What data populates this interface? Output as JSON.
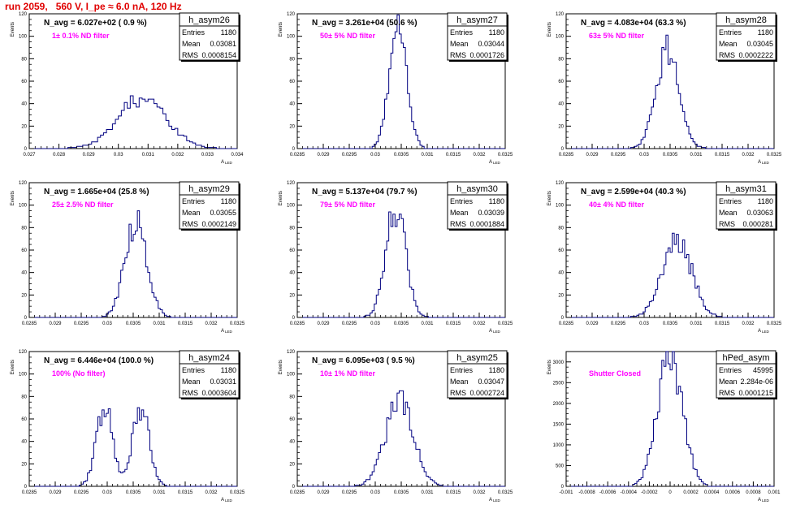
{
  "page": {
    "title": "run 2059,   560 V, I_pe ≈ 6.0 nA, 120 Hz",
    "stats_labels": {
      "entries": "Entries",
      "mean": "Mean",
      "rms": "RMS"
    },
    "ylabel": "Events",
    "xlabel": "A",
    "xlabel_sub": "LED",
    "colors": {
      "hist": "#000080",
      "title_red": "#e00000",
      "annotation": "#ff00ff",
      "axis": "#000000"
    }
  },
  "chart_data": [
    {
      "type": "bar",
      "name": "h_asym26",
      "n_avg": "N_avg = 6.027e+02 ( 0.9 %)",
      "annotation": "1± 0.1% ND filter",
      "entries": "1180",
      "mean": "0.03081",
      "rms": "0.0008154",
      "xlim": [
        0.027,
        0.034
      ],
      "ylim": [
        0,
        120
      ],
      "xticks": [
        "0.027",
        "0.028",
        "0.029",
        "0.03",
        "0.031",
        "0.032",
        "0.033",
        "0.034"
      ],
      "yticks": [
        "0",
        "20",
        "40",
        "60",
        "80",
        "100",
        "120"
      ],
      "bins": {
        "mean": 0.03081,
        "sigma": 0.00082,
        "peak": 45,
        "n": 70
      }
    },
    {
      "type": "bar",
      "name": "h_asym27",
      "n_avg": "N_avg = 3.261e+04 (50.6 %)",
      "annotation": "50± 5% ND filter",
      "entries": "1180",
      "mean": "0.03044",
      "rms": "0.0001726",
      "xlim": [
        0.0285,
        0.0325
      ],
      "ylim": [
        0,
        120
      ],
      "xticks": [
        "0.0285",
        "0.029",
        "0.0295",
        "0.03",
        "0.0305",
        "0.031",
        "0.0315",
        "0.032",
        "0.0325"
      ],
      "yticks": [
        "0",
        "20",
        "40",
        "60",
        "80",
        "100",
        "120"
      ],
      "bins": {
        "mean": 0.03044,
        "sigma": 0.00017,
        "peak": 105,
        "n": 100
      }
    },
    {
      "type": "bar",
      "name": "h_asym28",
      "n_avg": "N_avg = 4.083e+04 (63.3 %)",
      "annotation": "63± 5% ND filter",
      "entries": "1180",
      "mean": "0.03045",
      "rms": "0.0002222",
      "xlim": [
        0.0285,
        0.0325
      ],
      "ylim": [
        0,
        120
      ],
      "xticks": [
        "0.0285",
        "0.029",
        "0.0295",
        "0.03",
        "0.0305",
        "0.031",
        "0.0315",
        "0.032",
        "0.0325"
      ],
      "yticks": [
        "0",
        "20",
        "40",
        "60",
        "80",
        "100",
        "120"
      ],
      "bins": {
        "mean": 0.03045,
        "sigma": 0.00022,
        "peak": 88,
        "n": 100
      }
    },
    {
      "type": "bar",
      "name": "h_asym29",
      "n_avg": "N_avg = 1.665e+04 (25.8 %)",
      "annotation": "25± 2.5% ND filter",
      "entries": "1180",
      "mean": "0.03055",
      "rms": "0.0002149",
      "xlim": [
        0.0285,
        0.0325
      ],
      "ylim": [
        0,
        120
      ],
      "xticks": [
        "0.0285",
        "0.029",
        "0.0295",
        "0.03",
        "0.0305",
        "0.031",
        "0.0315",
        "0.032",
        "0.0325"
      ],
      "yticks": [
        "0",
        "20",
        "40",
        "60",
        "80",
        "100",
        "120"
      ],
      "bins": {
        "mean": 0.03055,
        "sigma": 0.00021,
        "peak": 85,
        "n": 100
      }
    },
    {
      "type": "bar",
      "name": "h_asym30",
      "n_avg": "N_avg = 5.137e+04 (79.7 %)",
      "annotation": "79± 5% ND filter",
      "entries": "1180",
      "mean": "0.03039",
      "rms": "0.0001884",
      "xlim": [
        0.0285,
        0.0325
      ],
      "ylim": [
        0,
        120
      ],
      "xticks": [
        "0.0285",
        "0.029",
        "0.0295",
        "0.03",
        "0.0305",
        "0.031",
        "0.0315",
        "0.032",
        "0.0325"
      ],
      "yticks": [
        "0",
        "20",
        "40",
        "60",
        "80",
        "100",
        "120"
      ],
      "bins": {
        "mean": 0.03039,
        "sigma": 0.00019,
        "peak": 97,
        "n": 100
      }
    },
    {
      "type": "bar",
      "name": "h_asym31",
      "n_avg": "N_avg = 2.599e+04 (40.3 %)",
      "annotation": "40± 4% ND filter",
      "entries": "1180",
      "mean": "0.03063",
      "rms": "0.000281",
      "xlim": [
        0.0285,
        0.0325
      ],
      "ylim": [
        0,
        120
      ],
      "xticks": [
        "0.0285",
        "0.029",
        "0.0295",
        "0.03",
        "0.0305",
        "0.031",
        "0.0315",
        "0.032",
        "0.0325"
      ],
      "yticks": [
        "0",
        "20",
        "40",
        "60",
        "80",
        "100",
        "120"
      ],
      "bins": {
        "mean": 0.03063,
        "sigma": 0.00028,
        "peak": 70,
        "n": 100
      }
    },
    {
      "type": "bar",
      "name": "h_asym24",
      "n_avg": "N_avg = 6.446e+04 (100.0 %)",
      "annotation": "100% (No filter)",
      "entries": "1180",
      "mean": "0.03031",
      "rms": "0.0003604",
      "xlim": [
        0.0285,
        0.0325
      ],
      "ylim": [
        0,
        120
      ],
      "xticks": [
        "0.0285",
        "0.029",
        "0.0295",
        "0.03",
        "0.0305",
        "0.031",
        "0.0315",
        "0.032",
        "0.0325"
      ],
      "yticks": [
        "0",
        "20",
        "40",
        "60",
        "80",
        "100",
        "120"
      ],
      "bins": {
        "bimodal": [
          0.02995,
          0.03065
        ],
        "sigma": 0.00016,
        "peak": 70,
        "n": 100
      }
    },
    {
      "type": "bar",
      "name": "h_asym25",
      "n_avg": "N_avg = 6.095e+03 ( 9.5 %)",
      "annotation": "10± 1% ND filter",
      "entries": "1180",
      "mean": "0.03047",
      "rms": "0.0002724",
      "xlim": [
        0.0285,
        0.0325
      ],
      "ylim": [
        0,
        120
      ],
      "xticks": [
        "0.0285",
        "0.029",
        "0.0295",
        "0.03",
        "0.0305",
        "0.031",
        "0.0315",
        "0.032",
        "0.0325"
      ],
      "yticks": [
        "0",
        "20",
        "40",
        "60",
        "80",
        "100",
        "120"
      ],
      "bins": {
        "mean": 0.03047,
        "sigma": 0.00027,
        "peak": 78,
        "n": 100
      }
    },
    {
      "type": "bar",
      "name": "hPed_asym",
      "n_avg": "",
      "annotation": "Shutter Closed",
      "entries": "45995",
      "mean": "2.284e-06",
      "rms": "0.0001215",
      "xlim": [
        -0.001,
        0.001
      ],
      "ylim": [
        0,
        3250
      ],
      "xticks": [
        "-0.001",
        "-0.0008",
        "-0.0006",
        "-0.0004",
        "-0.0002",
        "0",
        "0.0002",
        "0.0004",
        "0.0006",
        "0.0008",
        "0.001"
      ],
      "yticks": [
        "0",
        "500",
        "1000",
        "1500",
        "2000",
        "2500",
        "3000"
      ],
      "bins": {
        "mean": 0.0,
        "sigma": 0.00012,
        "peak": 3100,
        "n": 100
      }
    }
  ]
}
